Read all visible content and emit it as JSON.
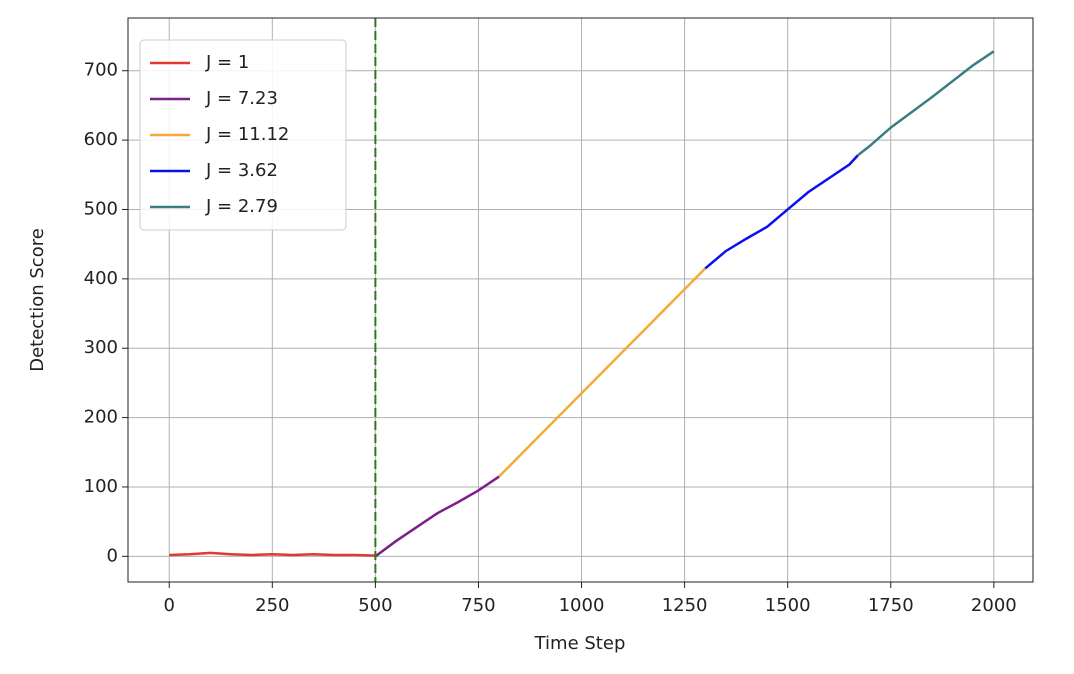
{
  "chart_data": {
    "type": "line",
    "xlabel": "Time Step",
    "ylabel": "Detection Score",
    "xlim": [
      -100,
      2095
    ],
    "ylim": [
      -37,
      776
    ],
    "xticks": [
      0,
      250,
      500,
      750,
      1000,
      1250,
      1500,
      1750,
      2000
    ],
    "yticks": [
      0,
      100,
      200,
      300,
      400,
      500,
      600,
      700
    ],
    "grid": true,
    "legend": "upper left",
    "vline": {
      "x": 500,
      "color": "#2a7a1a"
    },
    "series": [
      {
        "name": "J = 1",
        "color": "#e03a2f",
        "x": [
          0,
          50,
          100,
          150,
          200,
          250,
          300,
          350,
          400,
          450,
          500
        ],
        "values": [
          2,
          3,
          5,
          3,
          2,
          3,
          2,
          3,
          2,
          2,
          1
        ]
      },
      {
        "name": "J = 7.23",
        "color": "#7d1f8a",
        "x": [
          500,
          550,
          600,
          650,
          700,
          750,
          800
        ],
        "values": [
          0,
          22,
          42,
          62,
          78,
          95,
          115
        ]
      },
      {
        "name": "J = 11.12",
        "color": "#f5ab3a",
        "x": [
          800,
          850,
          900,
          950,
          1000,
          1050,
          1100,
          1150,
          1200,
          1250,
          1300
        ],
        "values": [
          115,
          145,
          175,
          205,
          235,
          265,
          295,
          325,
          355,
          385,
          415
        ]
      },
      {
        "name": "J = 3.62",
        "color": "#0a10f0",
        "x": [
          1300,
          1350,
          1400,
          1450,
          1500,
          1550,
          1600,
          1650,
          1670
        ],
        "values": [
          415,
          440,
          458,
          475,
          500,
          525,
          545,
          565,
          578
        ]
      },
      {
        "name": "J = 2.79",
        "color": "#3a7f80",
        "x": [
          1670,
          1700,
          1750,
          1800,
          1850,
          1900,
          1950,
          2000
        ],
        "values": [
          578,
          592,
          618,
          640,
          662,
          685,
          708,
          728
        ]
      }
    ]
  }
}
